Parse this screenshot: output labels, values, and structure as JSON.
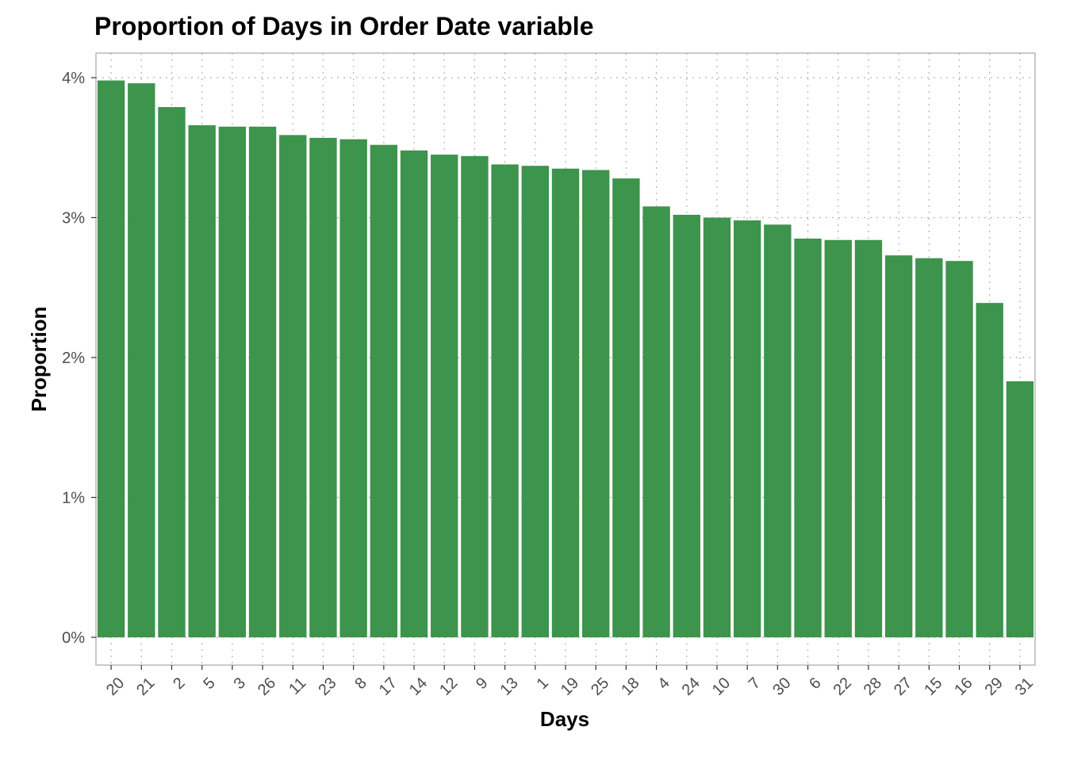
{
  "chart_data": {
    "type": "bar",
    "title": "Proportion of Days in Order Date variable",
    "xlabel": "Days",
    "ylabel": "Proportion",
    "categories": [
      "20",
      "21",
      "2",
      "5",
      "3",
      "26",
      "11",
      "23",
      "8",
      "17",
      "14",
      "12",
      "9",
      "13",
      "1",
      "19",
      "25",
      "18",
      "4",
      "24",
      "10",
      "7",
      "30",
      "6",
      "22",
      "28",
      "27",
      "15",
      "16",
      "29",
      "31"
    ],
    "values": [
      3.98,
      3.96,
      3.79,
      3.66,
      3.65,
      3.65,
      3.59,
      3.57,
      3.56,
      3.52,
      3.48,
      3.45,
      3.44,
      3.38,
      3.37,
      3.35,
      3.34,
      3.28,
      3.08,
      3.02,
      3.0,
      2.98,
      2.95,
      2.85,
      2.84,
      2.84,
      2.73,
      2.71,
      2.69,
      2.39,
      1.83
    ],
    "value_unit": "percent",
    "ylim": [
      0,
      4.2
    ],
    "y_ticks": [
      "0%",
      "1%",
      "2%",
      "3%",
      "4%"
    ],
    "y_tick_values": [
      0,
      1,
      2,
      3,
      4
    ],
    "grid": true,
    "grid_style": "dotted",
    "bar_color": "#3d944c",
    "grid_color": "#b3b3b3",
    "border_color": "#a6a6a6"
  }
}
